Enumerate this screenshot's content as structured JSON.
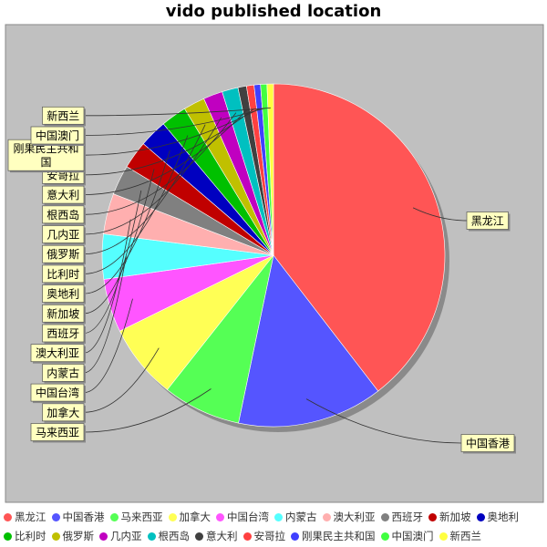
{
  "chart_data": {
    "type": "pie",
    "title": "vido published location",
    "slices": [
      {
        "label": "黑龙江",
        "value": 39.2,
        "color": "#ff5555"
      },
      {
        "label": "中国香港",
        "value": 13.6,
        "color": "#5555ff"
      },
      {
        "label": "马来西亚",
        "value": 7.3,
        "color": "#55ff55"
      },
      {
        "label": "加拿大",
        "value": 7.0,
        "color": "#ffff55"
      },
      {
        "label": "中国台湾",
        "value": 5.0,
        "color": "#ff55ff"
      },
      {
        "label": "内蒙古",
        "value": 4.2,
        "color": "#55ffff"
      },
      {
        "label": "澳大利亚",
        "value": 3.8,
        "color": "#ffafaf"
      },
      {
        "label": "西班牙",
        "value": 2.8,
        "color": "#808080"
      },
      {
        "label": "新加坡",
        "value": 2.6,
        "color": "#c00000"
      },
      {
        "label": "奥地利",
        "value": 2.6,
        "color": "#0000c0"
      },
      {
        "label": "比利时",
        "value": 2.4,
        "color": "#00c000"
      },
      {
        "label": "俄罗斯",
        "value": 2.0,
        "color": "#c0c000"
      },
      {
        "label": "几内亚",
        "value": 1.8,
        "color": "#c000c0"
      },
      {
        "label": "根西岛",
        "value": 1.5,
        "color": "#00c0c0"
      },
      {
        "label": "意大利",
        "value": 0.8,
        "color": "#404040"
      },
      {
        "label": "安哥拉",
        "value": 0.7,
        "color": "#ff4040"
      },
      {
        "label": "刚果民主共和国",
        "value": 0.6,
        "color": "#4040ff"
      },
      {
        "label": "中国澳门",
        "value": 0.6,
        "color": "#40ff40"
      },
      {
        "label": "新西兰",
        "value": 0.6,
        "color": "#ffff40"
      }
    ]
  }
}
